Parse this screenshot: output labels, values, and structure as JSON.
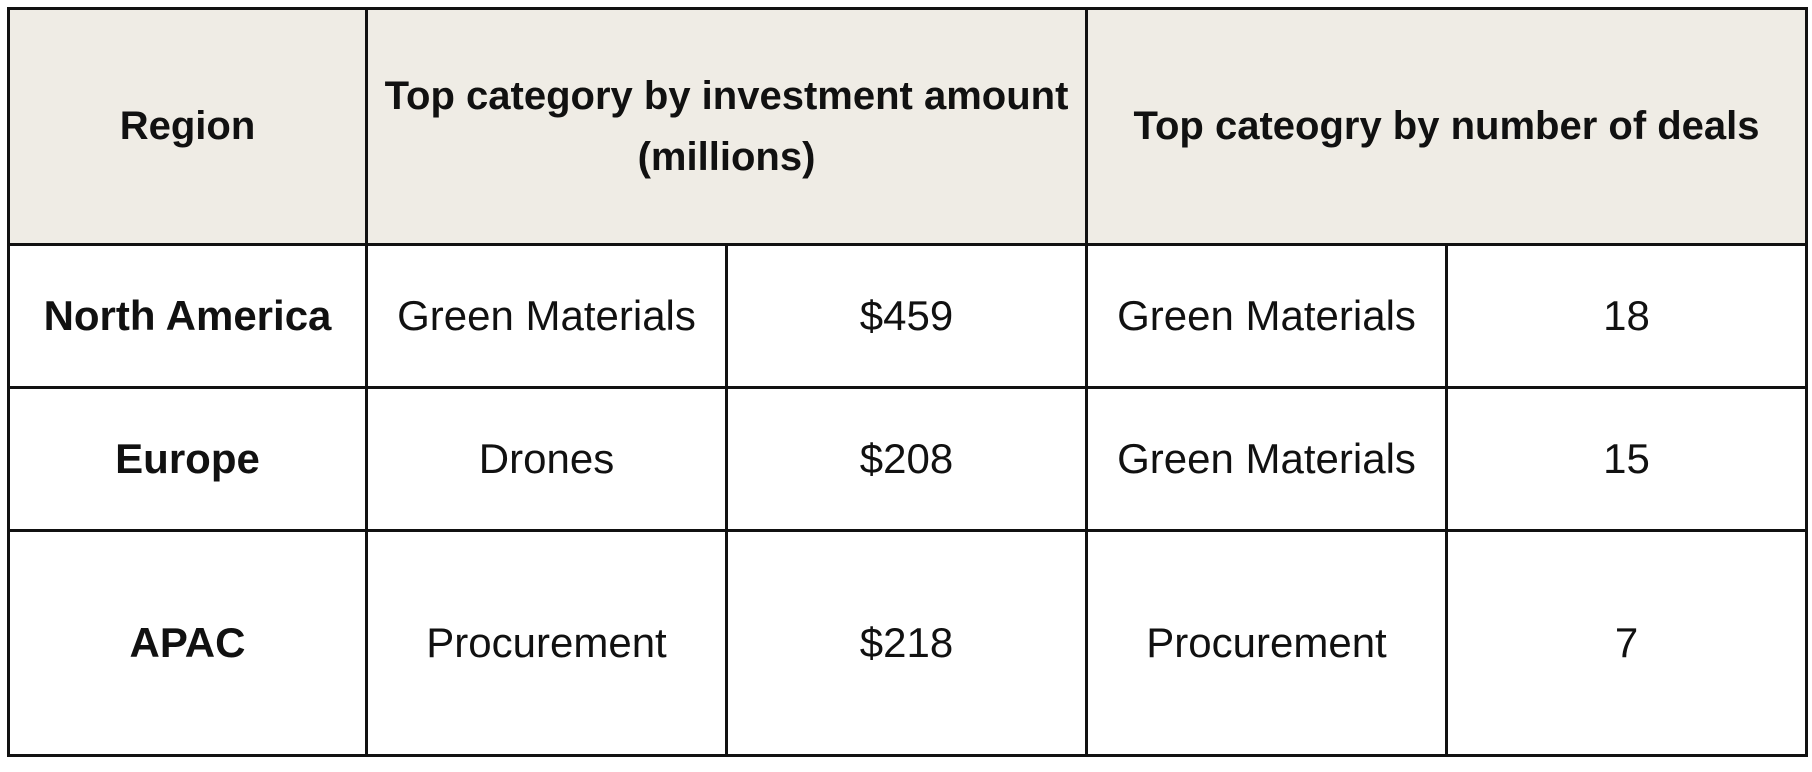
{
  "chart_data": {
    "type": "table",
    "columns": [
      "Region",
      "Top category by investment amount (millions)",
      "Top cateogry by number of deals"
    ],
    "rows": [
      {
        "region": "North America",
        "investment_category": "Green Materials",
        "investment_amount": "$459",
        "deals_category": "Green Materials",
        "deals_count": "18"
      },
      {
        "region": "Europe",
        "investment_category": "Drones",
        "investment_amount": "$208",
        "deals_category": "Green Materials",
        "deals_count": "15"
      },
      {
        "region": "APAC",
        "investment_category": "Procurement",
        "investment_amount": "$218",
        "deals_category": "Procurement",
        "deals_count": "7"
      }
    ]
  },
  "colors": {
    "header_bg": "#efece5",
    "border": "#111111",
    "text": "#111111"
  }
}
